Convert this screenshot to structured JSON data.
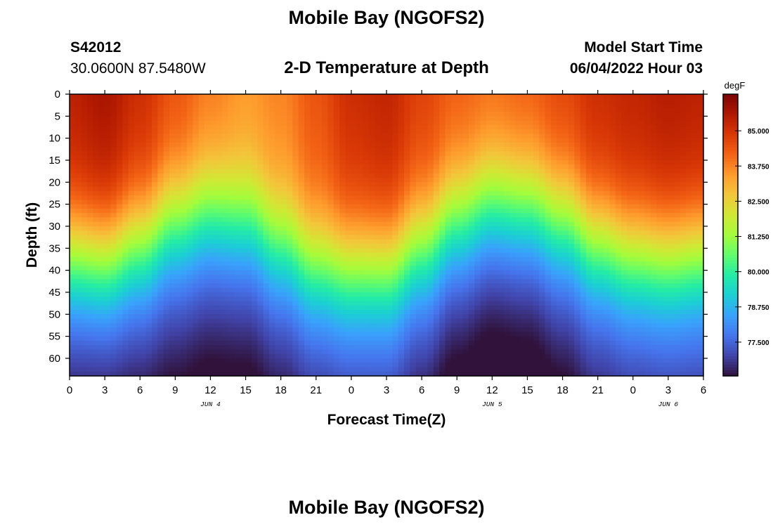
{
  "header": {
    "title": "Mobile Bay (NGOFS2)",
    "station_id": "S42012",
    "station_coords": "30.0600N  87.5480W",
    "subtitle": "2-D Temperature at Depth",
    "model_start_label": "Model Start Time",
    "model_start_value": "06/04/2022 Hour 03"
  },
  "footer": {
    "title": "Mobile Bay (NGOFS2)"
  },
  "chart_data": {
    "type": "heatmap",
    "title": "2-D Temperature at Depth",
    "xlabel": "Forecast Time(Z)",
    "ylabel": "Depth (ft)",
    "x_unit": "hours since 2022-06-04 00Z",
    "x_range": [
      0,
      54
    ],
    "x_tick_labels": [
      "0",
      "3",
      "6",
      "9",
      "12",
      "15",
      "18",
      "21",
      "0",
      "3",
      "6",
      "9",
      "12",
      "15",
      "18",
      "21",
      "0",
      "3",
      "6"
    ],
    "date_labels": [
      {
        "text": "JUN 4",
        "at_tick": "12"
      },
      {
        "text": "JUN 5",
        "at_tick": "12"
      },
      {
        "text": "JUN 6",
        "at_tick": "3"
      }
    ],
    "y_range": [
      0,
      64
    ],
    "y_inverted": true,
    "y_ticks": [
      0,
      5,
      10,
      15,
      20,
      25,
      30,
      35,
      40,
      45,
      50,
      55,
      60
    ],
    "colorbar": {
      "unit": "degF",
      "range": [
        76.3,
        86.3
      ],
      "tick_values": [
        85.0,
        83.75,
        82.5,
        81.25,
        80.0,
        78.75,
        77.5
      ],
      "tick_labels": [
        "85.000",
        "83.750",
        "82.500",
        "81.250",
        "80.000",
        "78.750",
        "77.500"
      ],
      "colormap": [
        "#30123b",
        "#4145ab",
        "#4675ed",
        "#39a2fc",
        "#1bcfd4",
        "#24eca6",
        "#61fc6c",
        "#a4fc3b",
        "#d1e834",
        "#f3c63a",
        "#fe9b2d",
        "#f36315",
        "#d93806",
        "#b11901",
        "#7a0402"
      ]
    },
    "mixed_layer_depth_ft": [
      {
        "x": 0,
        "y": 30
      },
      {
        "x": 3,
        "y": 31
      },
      {
        "x": 6,
        "y": 27
      },
      {
        "x": 9,
        "y": 21
      },
      {
        "x": 12,
        "y": 18
      },
      {
        "x": 15,
        "y": 19
      },
      {
        "x": 18,
        "y": 25
      },
      {
        "x": 21,
        "y": 31
      },
      {
        "x": 24,
        "y": 33
      },
      {
        "x": 27,
        "y": 33
      },
      {
        "x": 30,
        "y": 27
      },
      {
        "x": 33,
        "y": 20
      },
      {
        "x": 36,
        "y": 16
      },
      {
        "x": 39,
        "y": 17
      },
      {
        "x": 42,
        "y": 21
      },
      {
        "x": 45,
        "y": 27
      },
      {
        "x": 48,
        "y": 30
      },
      {
        "x": 51,
        "y": 31
      },
      {
        "x": 54,
        "y": 30
      }
    ],
    "surface_temp_degF": [
      {
        "x": 0,
        "y": 86.0
      },
      {
        "x": 3,
        "y": 86.3
      },
      {
        "x": 6,
        "y": 85.7
      },
      {
        "x": 9,
        "y": 85.0
      },
      {
        "x": 12,
        "y": 84.4
      },
      {
        "x": 15,
        "y": 84.0
      },
      {
        "x": 18,
        "y": 84.3
      },
      {
        "x": 21,
        "y": 85.0
      },
      {
        "x": 24,
        "y": 85.7
      },
      {
        "x": 27,
        "y": 85.9
      },
      {
        "x": 30,
        "y": 85.3
      },
      {
        "x": 33,
        "y": 84.8
      },
      {
        "x": 36,
        "y": 84.6
      },
      {
        "x": 39,
        "y": 84.8
      },
      {
        "x": 42,
        "y": 85.2
      },
      {
        "x": 45,
        "y": 85.7
      },
      {
        "x": 48,
        "y": 85.9
      },
      {
        "x": 51,
        "y": 86.1
      },
      {
        "x": 54,
        "y": 86.0
      }
    ],
    "bottom_temp_degF": [
      {
        "x": 0,
        "y": 76.7
      },
      {
        "x": 3,
        "y": 76.6
      },
      {
        "x": 6,
        "y": 76.8
      },
      {
        "x": 9,
        "y": 76.9
      },
      {
        "x": 12,
        "y": 76.8
      },
      {
        "x": 15,
        "y": 76.8
      },
      {
        "x": 18,
        "y": 77.0
      },
      {
        "x": 21,
        "y": 77.2
      },
      {
        "x": 24,
        "y": 77.4
      },
      {
        "x": 27,
        "y": 77.4
      },
      {
        "x": 30,
        "y": 77.0
      },
      {
        "x": 33,
        "y": 76.5
      },
      {
        "x": 36,
        "y": 76.3
      },
      {
        "x": 39,
        "y": 76.4
      },
      {
        "x": 42,
        "y": 76.8
      },
      {
        "x": 45,
        "y": 77.2
      },
      {
        "x": 48,
        "y": 77.4
      },
      {
        "x": 51,
        "y": 77.5
      },
      {
        "x": 54,
        "y": 77.5
      }
    ]
  }
}
